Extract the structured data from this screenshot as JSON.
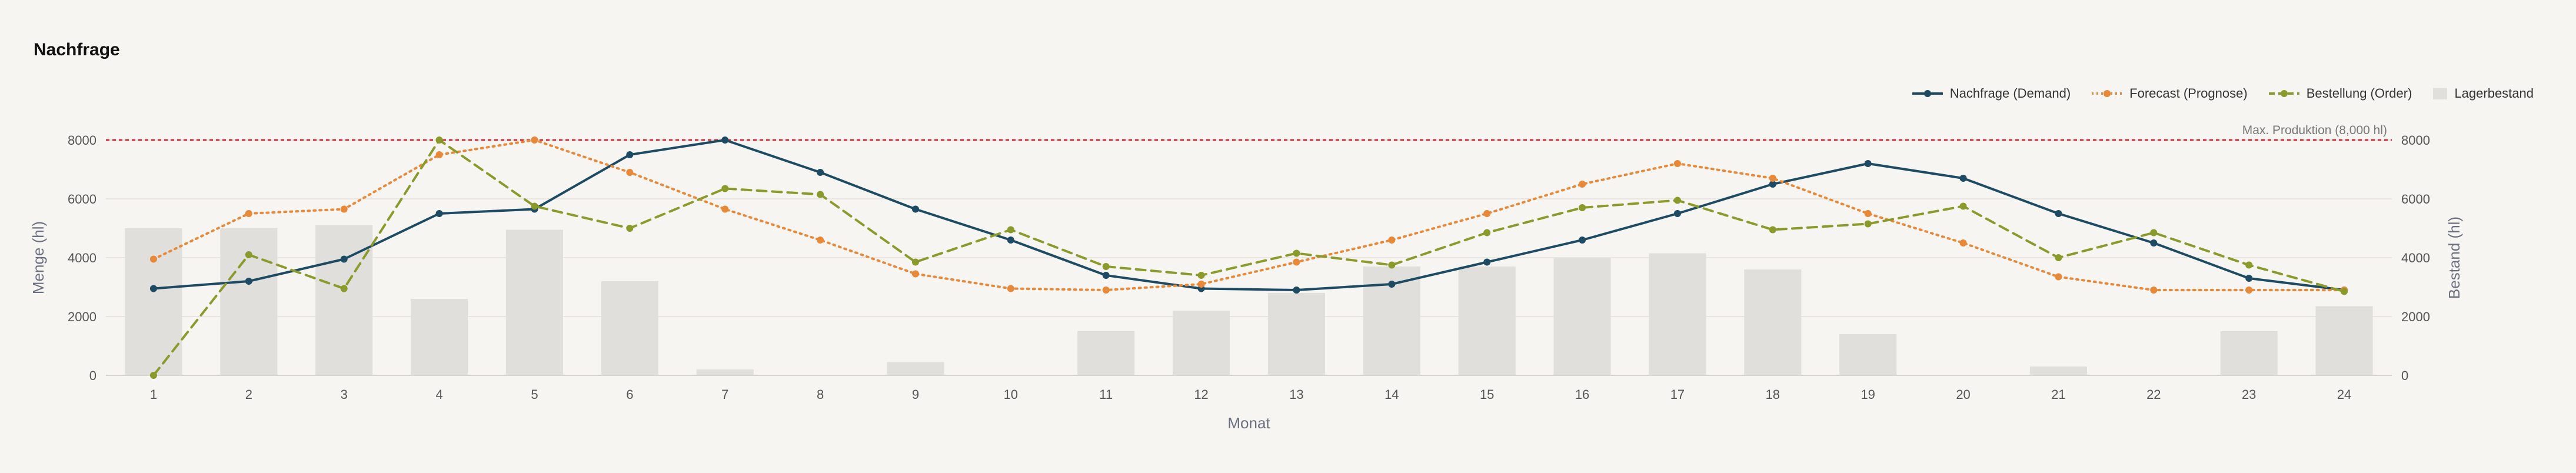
{
  "chart_data": {
    "type": "line",
    "title": "Nachfrage",
    "xlabel": "Monat",
    "ylabel": "Menge (hl)",
    "y2label": "Bestand (hl)",
    "x": [
      1,
      2,
      3,
      4,
      5,
      6,
      7,
      8,
      9,
      10,
      11,
      12,
      13,
      14,
      15,
      16,
      17,
      18,
      19,
      20,
      21,
      22,
      23,
      24
    ],
    "ylim": [
      0,
      8000
    ],
    "y2lim": [
      0,
      8000
    ],
    "yticks": [
      0,
      2000,
      4000,
      6000,
      8000
    ],
    "grid": true,
    "legend_position": "top-right",
    "reference_line": {
      "value": 8000,
      "label": "Max. Produktion (8,000 hl)",
      "color": "#c8323c"
    },
    "series": [
      {
        "name": "Nachfrage (Demand)",
        "kind": "line",
        "style": "solid",
        "color": "#1c4b63",
        "values": [
          2950,
          3200,
          3950,
          5500,
          5650,
          7500,
          8000,
          6900,
          5650,
          4600,
          3400,
          2950,
          2900,
          3100,
          3850,
          4600,
          5500,
          6500,
          7200,
          6700,
          5500,
          4500,
          3300,
          2900
        ]
      },
      {
        "name": "Forecast (Prognose)",
        "kind": "line",
        "style": "dotted",
        "color": "#e8893a",
        "values": [
          3950,
          5500,
          5650,
          7500,
          8000,
          6900,
          5650,
          4600,
          3450,
          2950,
          2900,
          3100,
          3850,
          4600,
          5500,
          6500,
          7200,
          6700,
          5500,
          4500,
          3350,
          2900,
          2900,
          2900
        ]
      },
      {
        "name": "Bestellung (Order)",
        "kind": "line",
        "style": "dashed",
        "color": "#8a9a2b",
        "values": [
          0,
          4100,
          2950,
          8000,
          5750,
          5000,
          6350,
          6150,
          3850,
          4950,
          3700,
          3400,
          4150,
          3750,
          4850,
          5700,
          5950,
          4950,
          5150,
          5750,
          4000,
          4850,
          3750,
          2850
        ]
      },
      {
        "name": "Lagerbestand",
        "kind": "bar",
        "axis": "right",
        "color": "#e0dfdb",
        "values": [
          5000,
          5000,
          5100,
          2600,
          4950,
          3200,
          200,
          0,
          450,
          0,
          1500,
          2200,
          2800,
          3700,
          3700,
          4000,
          4150,
          3600,
          1400,
          0,
          300,
          0,
          1500,
          2350
        ]
      }
    ]
  }
}
